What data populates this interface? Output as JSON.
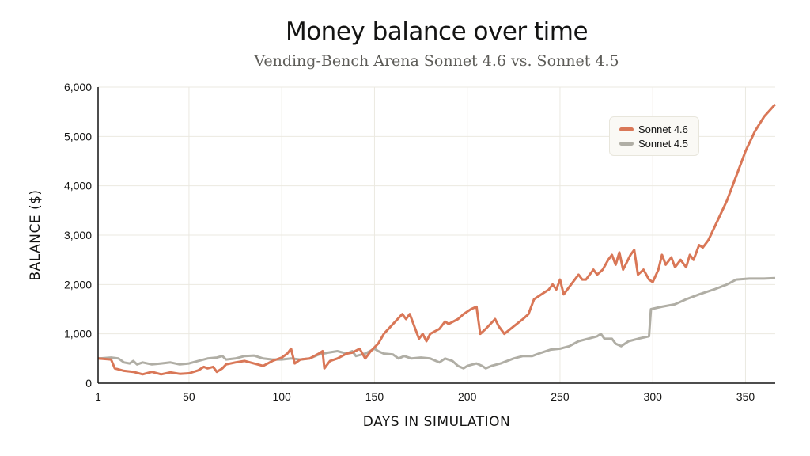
{
  "chart_data": {
    "type": "line",
    "title": "Money balance over time",
    "subtitle": "Vending-Bench Arena Sonnet 4.6 vs. Sonnet 4.5",
    "xlabel": "DAYS IN SIMULATION",
    "ylabel": "BALANCE ($)",
    "xlim": [
      1,
      366
    ],
    "ylim": [
      0,
      6000
    ],
    "x_ticks": [
      1,
      50,
      100,
      150,
      200,
      250,
      300,
      350
    ],
    "x_tick_labels": [
      "1",
      "50",
      "100",
      "150",
      "200",
      "250",
      "300",
      "350"
    ],
    "y_ticks": [
      0,
      1000,
      2000,
      3000,
      4000,
      5000,
      6000
    ],
    "y_tick_labels": [
      "0",
      "1,000",
      "2,000",
      "3,000",
      "4,000",
      "5,000",
      "6,000"
    ],
    "grid": true,
    "legend_position": "top-right",
    "series": [
      {
        "name": "Sonnet 4.6",
        "color": "#d97757",
        "points": [
          [
            1,
            500
          ],
          [
            8,
            480
          ],
          [
            10,
            300
          ],
          [
            15,
            250
          ],
          [
            20,
            230
          ],
          [
            25,
            180
          ],
          [
            30,
            230
          ],
          [
            35,
            180
          ],
          [
            40,
            220
          ],
          [
            45,
            190
          ],
          [
            50,
            200
          ],
          [
            55,
            260
          ],
          [
            58,
            330
          ],
          [
            60,
            300
          ],
          [
            63,
            330
          ],
          [
            65,
            230
          ],
          [
            68,
            300
          ],
          [
            70,
            380
          ],
          [
            75,
            420
          ],
          [
            80,
            450
          ],
          [
            85,
            400
          ],
          [
            90,
            350
          ],
          [
            95,
            450
          ],
          [
            100,
            520
          ],
          [
            103,
            600
          ],
          [
            105,
            700
          ],
          [
            107,
            400
          ],
          [
            110,
            480
          ],
          [
            115,
            500
          ],
          [
            120,
            600
          ],
          [
            122,
            650
          ],
          [
            123,
            300
          ],
          [
            126,
            450
          ],
          [
            130,
            500
          ],
          [
            135,
            600
          ],
          [
            138,
            620
          ],
          [
            142,
            700
          ],
          [
            145,
            500
          ],
          [
            148,
            650
          ],
          [
            152,
            800
          ],
          [
            155,
            1000
          ],
          [
            160,
            1200
          ],
          [
            165,
            1400
          ],
          [
            167,
            1300
          ],
          [
            169,
            1400
          ],
          [
            172,
            1100
          ],
          [
            174,
            900
          ],
          [
            176,
            1000
          ],
          [
            178,
            850
          ],
          [
            180,
            1000
          ],
          [
            185,
            1100
          ],
          [
            188,
            1250
          ],
          [
            190,
            1200
          ],
          [
            195,
            1300
          ],
          [
            198,
            1400
          ],
          [
            202,
            1500
          ],
          [
            205,
            1550
          ],
          [
            207,
            1000
          ],
          [
            210,
            1100
          ],
          [
            215,
            1300
          ],
          [
            217,
            1150
          ],
          [
            220,
            1000
          ],
          [
            225,
            1150
          ],
          [
            230,
            1300
          ],
          [
            233,
            1400
          ],
          [
            236,
            1700
          ],
          [
            240,
            1800
          ],
          [
            244,
            1900
          ],
          [
            246,
            2000
          ],
          [
            248,
            1900
          ],
          [
            250,
            2100
          ],
          [
            252,
            1800
          ],
          [
            256,
            2000
          ],
          [
            260,
            2200
          ],
          [
            262,
            2100
          ],
          [
            264,
            2100
          ],
          [
            268,
            2300
          ],
          [
            270,
            2200
          ],
          [
            273,
            2300
          ],
          [
            276,
            2500
          ],
          [
            278,
            2600
          ],
          [
            280,
            2400
          ],
          [
            282,
            2650
          ],
          [
            284,
            2300
          ],
          [
            288,
            2600
          ],
          [
            290,
            2700
          ],
          [
            292,
            2200
          ],
          [
            295,
            2300
          ],
          [
            298,
            2100
          ],
          [
            300,
            2050
          ],
          [
            303,
            2300
          ],
          [
            305,
            2600
          ],
          [
            307,
            2400
          ],
          [
            310,
            2550
          ],
          [
            312,
            2350
          ],
          [
            315,
            2500
          ],
          [
            318,
            2350
          ],
          [
            320,
            2600
          ],
          [
            322,
            2500
          ],
          [
            325,
            2800
          ],
          [
            327,
            2750
          ],
          [
            330,
            2900
          ],
          [
            335,
            3300
          ],
          [
            340,
            3700
          ],
          [
            345,
            4200
          ],
          [
            350,
            4700
          ],
          [
            355,
            5100
          ],
          [
            360,
            5400
          ],
          [
            366,
            5650
          ]
        ]
      },
      {
        "name": "Sonnet 4.5",
        "color": "#b0aea5",
        "points": [
          [
            1,
            500
          ],
          [
            8,
            520
          ],
          [
            12,
            500
          ],
          [
            15,
            420
          ],
          [
            18,
            400
          ],
          [
            20,
            450
          ],
          [
            22,
            380
          ],
          [
            25,
            420
          ],
          [
            30,
            380
          ],
          [
            35,
            400
          ],
          [
            40,
            420
          ],
          [
            45,
            380
          ],
          [
            50,
            400
          ],
          [
            55,
            450
          ],
          [
            60,
            500
          ],
          [
            65,
            520
          ],
          [
            68,
            550
          ],
          [
            70,
            480
          ],
          [
            75,
            500
          ],
          [
            80,
            550
          ],
          [
            85,
            560
          ],
          [
            90,
            500
          ],
          [
            95,
            480
          ],
          [
            100,
            480
          ],
          [
            105,
            500
          ],
          [
            110,
            480
          ],
          [
            115,
            500
          ],
          [
            120,
            580
          ],
          [
            125,
            620
          ],
          [
            130,
            650
          ],
          [
            135,
            600
          ],
          [
            138,
            650
          ],
          [
            140,
            550
          ],
          [
            145,
            600
          ],
          [
            150,
            700
          ],
          [
            152,
            650
          ],
          [
            155,
            600
          ],
          [
            160,
            580
          ],
          [
            163,
            500
          ],
          [
            166,
            550
          ],
          [
            170,
            500
          ],
          [
            175,
            520
          ],
          [
            180,
            500
          ],
          [
            185,
            420
          ],
          [
            188,
            500
          ],
          [
            192,
            450
          ],
          [
            195,
            350
          ],
          [
            198,
            300
          ],
          [
            200,
            350
          ],
          [
            203,
            380
          ],
          [
            205,
            400
          ],
          [
            208,
            350
          ],
          [
            210,
            300
          ],
          [
            213,
            350
          ],
          [
            218,
            400
          ],
          [
            225,
            500
          ],
          [
            230,
            550
          ],
          [
            235,
            550
          ],
          [
            240,
            620
          ],
          [
            245,
            680
          ],
          [
            250,
            700
          ],
          [
            255,
            750
          ],
          [
            260,
            850
          ],
          [
            265,
            900
          ],
          [
            270,
            950
          ],
          [
            272,
            1000
          ],
          [
            274,
            900
          ],
          [
            278,
            900
          ],
          [
            280,
            800
          ],
          [
            283,
            750
          ],
          [
            287,
            850
          ],
          [
            292,
            900
          ],
          [
            298,
            950
          ],
          [
            299,
            1500
          ],
          [
            305,
            1550
          ],
          [
            312,
            1600
          ],
          [
            318,
            1700
          ],
          [
            325,
            1800
          ],
          [
            333,
            1900
          ],
          [
            340,
            2000
          ],
          [
            345,
            2100
          ],
          [
            352,
            2120
          ],
          [
            360,
            2120
          ],
          [
            366,
            2130
          ]
        ]
      }
    ]
  }
}
